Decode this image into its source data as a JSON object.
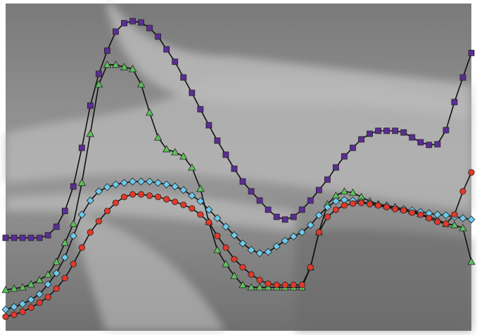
{
  "chart_data": {
    "type": "line",
    "x": [
      0,
      2,
      4,
      6,
      8,
      10,
      12,
      14,
      16,
      18,
      20,
      22,
      24,
      26,
      28,
      30,
      32,
      34,
      36,
      38,
      40,
      42,
      44,
      46,
      48,
      50,
      52,
      54,
      56,
      58,
      60,
      62,
      64,
      66,
      68,
      70,
      72,
      74,
      76,
      78,
      80,
      82,
      84,
      86,
      88,
      90,
      92,
      94,
      96,
      98,
      100,
      102,
      104,
      106,
      108,
      110
    ],
    "xlim": [
      0,
      110
    ],
    "ylim": [
      0,
      100
    ],
    "series": [
      {
        "color": "#5b2d94",
        "marker": "square",
        "values": [
          28.4,
          28.4,
          28.4,
          28.4,
          28.4,
          29.2,
          31.8,
          36.6,
          44.1,
          55.9,
          68.8,
          78.5,
          85.6,
          91.4,
          94,
          94.6,
          94.2,
          92.5,
          89.9,
          86,
          82.2,
          77.4,
          72.7,
          67.7,
          62.8,
          58.1,
          53.8,
          49.5,
          45.6,
          42.6,
          39.8,
          37,
          34.8,
          34,
          34.8,
          37,
          39.8,
          43,
          46.2,
          49.9,
          53.3,
          55.9,
          58.5,
          60.2,
          61.1,
          61.1,
          61.1,
          60.6,
          59.1,
          57.6,
          56.8,
          57,
          61.3,
          69.9,
          77.4,
          84.9
        ]
      },
      {
        "color": "#5cc35a",
        "marker": "triangle",
        "values": [
          12.5,
          12.9,
          13.3,
          14.2,
          15.5,
          17.2,
          21.1,
          26.9,
          32.7,
          45.2,
          60.2,
          75.3,
          81.3,
          81.3,
          80.6,
          80,
          75.3,
          66.7,
          59.1,
          55.5,
          54.6,
          53.3,
          49.9,
          43.4,
          33.3,
          24.7,
          20.4,
          16.8,
          14,
          13.3,
          13.3,
          13.3,
          13.3,
          13.3,
          13.3,
          13.3,
          19.4,
          30.1,
          38.7,
          41.3,
          42.6,
          42.2,
          40.9,
          39.6,
          38.7,
          38.3,
          37.8,
          37.2,
          36.6,
          35.7,
          34.8,
          34,
          32.7,
          32.3,
          31.4,
          21.1
        ]
      },
      {
        "color": "#6ccbec",
        "marker": "diamond",
        "values": [
          6.5,
          7.3,
          8.2,
          9.5,
          11.2,
          14.2,
          17.6,
          22.4,
          29,
          35.5,
          39.8,
          42.6,
          43.9,
          44.7,
          45.2,
          45.6,
          45.6,
          45.6,
          45.2,
          44.7,
          44.1,
          43,
          41.3,
          39.6,
          37,
          34.4,
          31.8,
          29.2,
          26.7,
          24.7,
          23.7,
          24.1,
          25.8,
          27.5,
          28.8,
          30.1,
          32.3,
          35.3,
          37.8,
          39.6,
          40,
          39.8,
          39.4,
          38.9,
          38.5,
          38.1,
          37.6,
          37.2,
          36.8,
          36.3,
          35.9,
          35.5,
          35.3,
          34.8,
          34.4,
          34
        ]
      },
      {
        "color": "#e2392a",
        "marker": "circle",
        "values": [
          4.3,
          4.9,
          5.8,
          7.1,
          8.6,
          10.3,
          12.9,
          16.1,
          20.4,
          25.4,
          30.1,
          33.5,
          36.6,
          39.1,
          40.9,
          41.7,
          41.7,
          41.3,
          40.9,
          40.2,
          39.4,
          38.5,
          37.4,
          35.5,
          33.1,
          29,
          25.4,
          21.9,
          19.4,
          17.2,
          15.5,
          14.4,
          14,
          14,
          14,
          14,
          19.4,
          30.1,
          34.8,
          37,
          38.3,
          38.9,
          39.1,
          38.7,
          38.3,
          37.8,
          37.2,
          36.8,
          36.1,
          35.5,
          34.4,
          33.3,
          32.7,
          35.5,
          42.6,
          48.4
        ]
      }
    ]
  }
}
